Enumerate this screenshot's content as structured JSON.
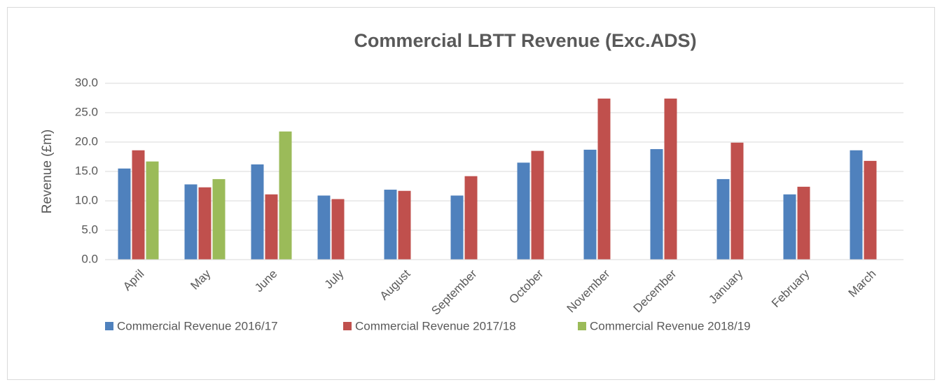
{
  "chart_data": {
    "type": "bar",
    "title": "Commercial LBTT Revenue (Exc.ADS)",
    "y_label": "Revenue (£m)",
    "categories": [
      "April",
      "May",
      "June",
      "July",
      "August",
      "September",
      "October",
      "November",
      "December",
      "January",
      "February",
      "March"
    ],
    "series": [
      {
        "name": "Commercial Revenue 2016/17",
        "color": "#4f81bd",
        "values": [
          15.5,
          12.8,
          16.2,
          10.9,
          11.9,
          10.9,
          16.5,
          18.7,
          18.8,
          13.7,
          11.1,
          18.6
        ]
      },
      {
        "name": "Commercial Revenue 2017/18",
        "color": "#c0504d",
        "values": [
          18.6,
          12.3,
          11.1,
          10.3,
          11.7,
          14.2,
          18.5,
          27.4,
          27.4,
          19.9,
          12.4,
          16.8
        ]
      },
      {
        "name": "Commercial Revenue 2018/19",
        "color": "#9bbb59",
        "values": [
          16.7,
          13.7,
          21.8,
          null,
          null,
          null,
          null,
          null,
          null,
          null,
          null,
          null
        ]
      }
    ],
    "ylim": [
      0,
      30
    ],
    "yticks": [
      {
        "value": 0,
        "label": "0.0"
      },
      {
        "value": 5,
        "label": "5.0"
      },
      {
        "value": 10,
        "label": "10.0"
      },
      {
        "value": 15,
        "label": "15.0"
      },
      {
        "value": 20,
        "label": "20.0"
      },
      {
        "value": 25,
        "label": "25.0"
      },
      {
        "value": 30,
        "label": "30.0"
      }
    ],
    "grid": true,
    "legend": "bottom"
  }
}
